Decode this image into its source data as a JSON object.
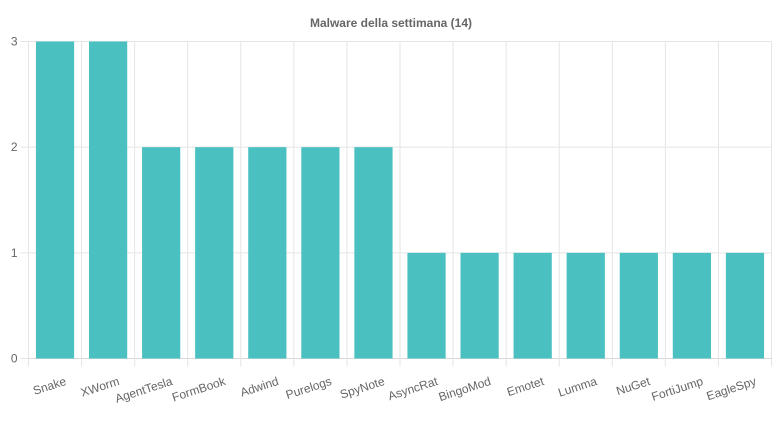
{
  "chart_data": {
    "type": "bar",
    "title": "Malware della settimana (14)",
    "xlabel": "",
    "ylabel": "",
    "categories": [
      "Snake",
      "XWorm",
      "AgentTesla",
      "FormBook",
      "Adwind",
      "Purelogs",
      "SpyNote",
      "AsyncRat",
      "BingoMod",
      "Emotet",
      "Lumma",
      "NuGet",
      "FortiJump",
      "EagleSpy"
    ],
    "values": [
      3,
      3,
      2,
      2,
      2,
      2,
      2,
      1,
      1,
      1,
      1,
      1,
      1,
      1
    ],
    "ylim": [
      0,
      3
    ],
    "yticks": [
      0,
      1,
      2,
      3
    ],
    "grid": true,
    "legend": "none",
    "bar_color": "#4bc0c0",
    "grid_color": "#e5e5e5",
    "axis_color": "#d9d9d9",
    "text_color": "#666666"
  }
}
